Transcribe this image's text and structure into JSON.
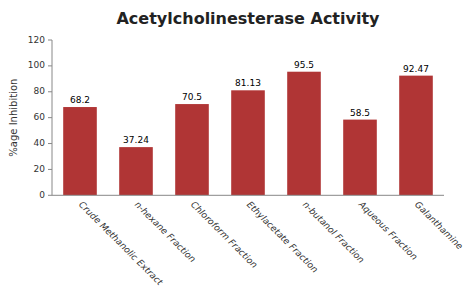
{
  "chart_data": {
    "type": "bar",
    "title": "Acetylcholinesterase Activity",
    "ylabel": "%age Inhibition",
    "categories": [
      "Crude Methanolic Extract",
      "n-hexane Fraction",
      "Chloroform Fraction",
      "Ethylacetate Fraction",
      "n-butanol Fraction",
      "Aqueous Fraction",
      "Galanthamine"
    ],
    "values": [
      68.2,
      37.24,
      70.5,
      81.13,
      95.5,
      58.5,
      92.47
    ],
    "color": "#b03535",
    "ylim": [
      0,
      120
    ],
    "yticks": [
      0,
      20,
      40,
      60,
      80,
      100,
      120
    ],
    "grid": false,
    "data_labels": true
  }
}
